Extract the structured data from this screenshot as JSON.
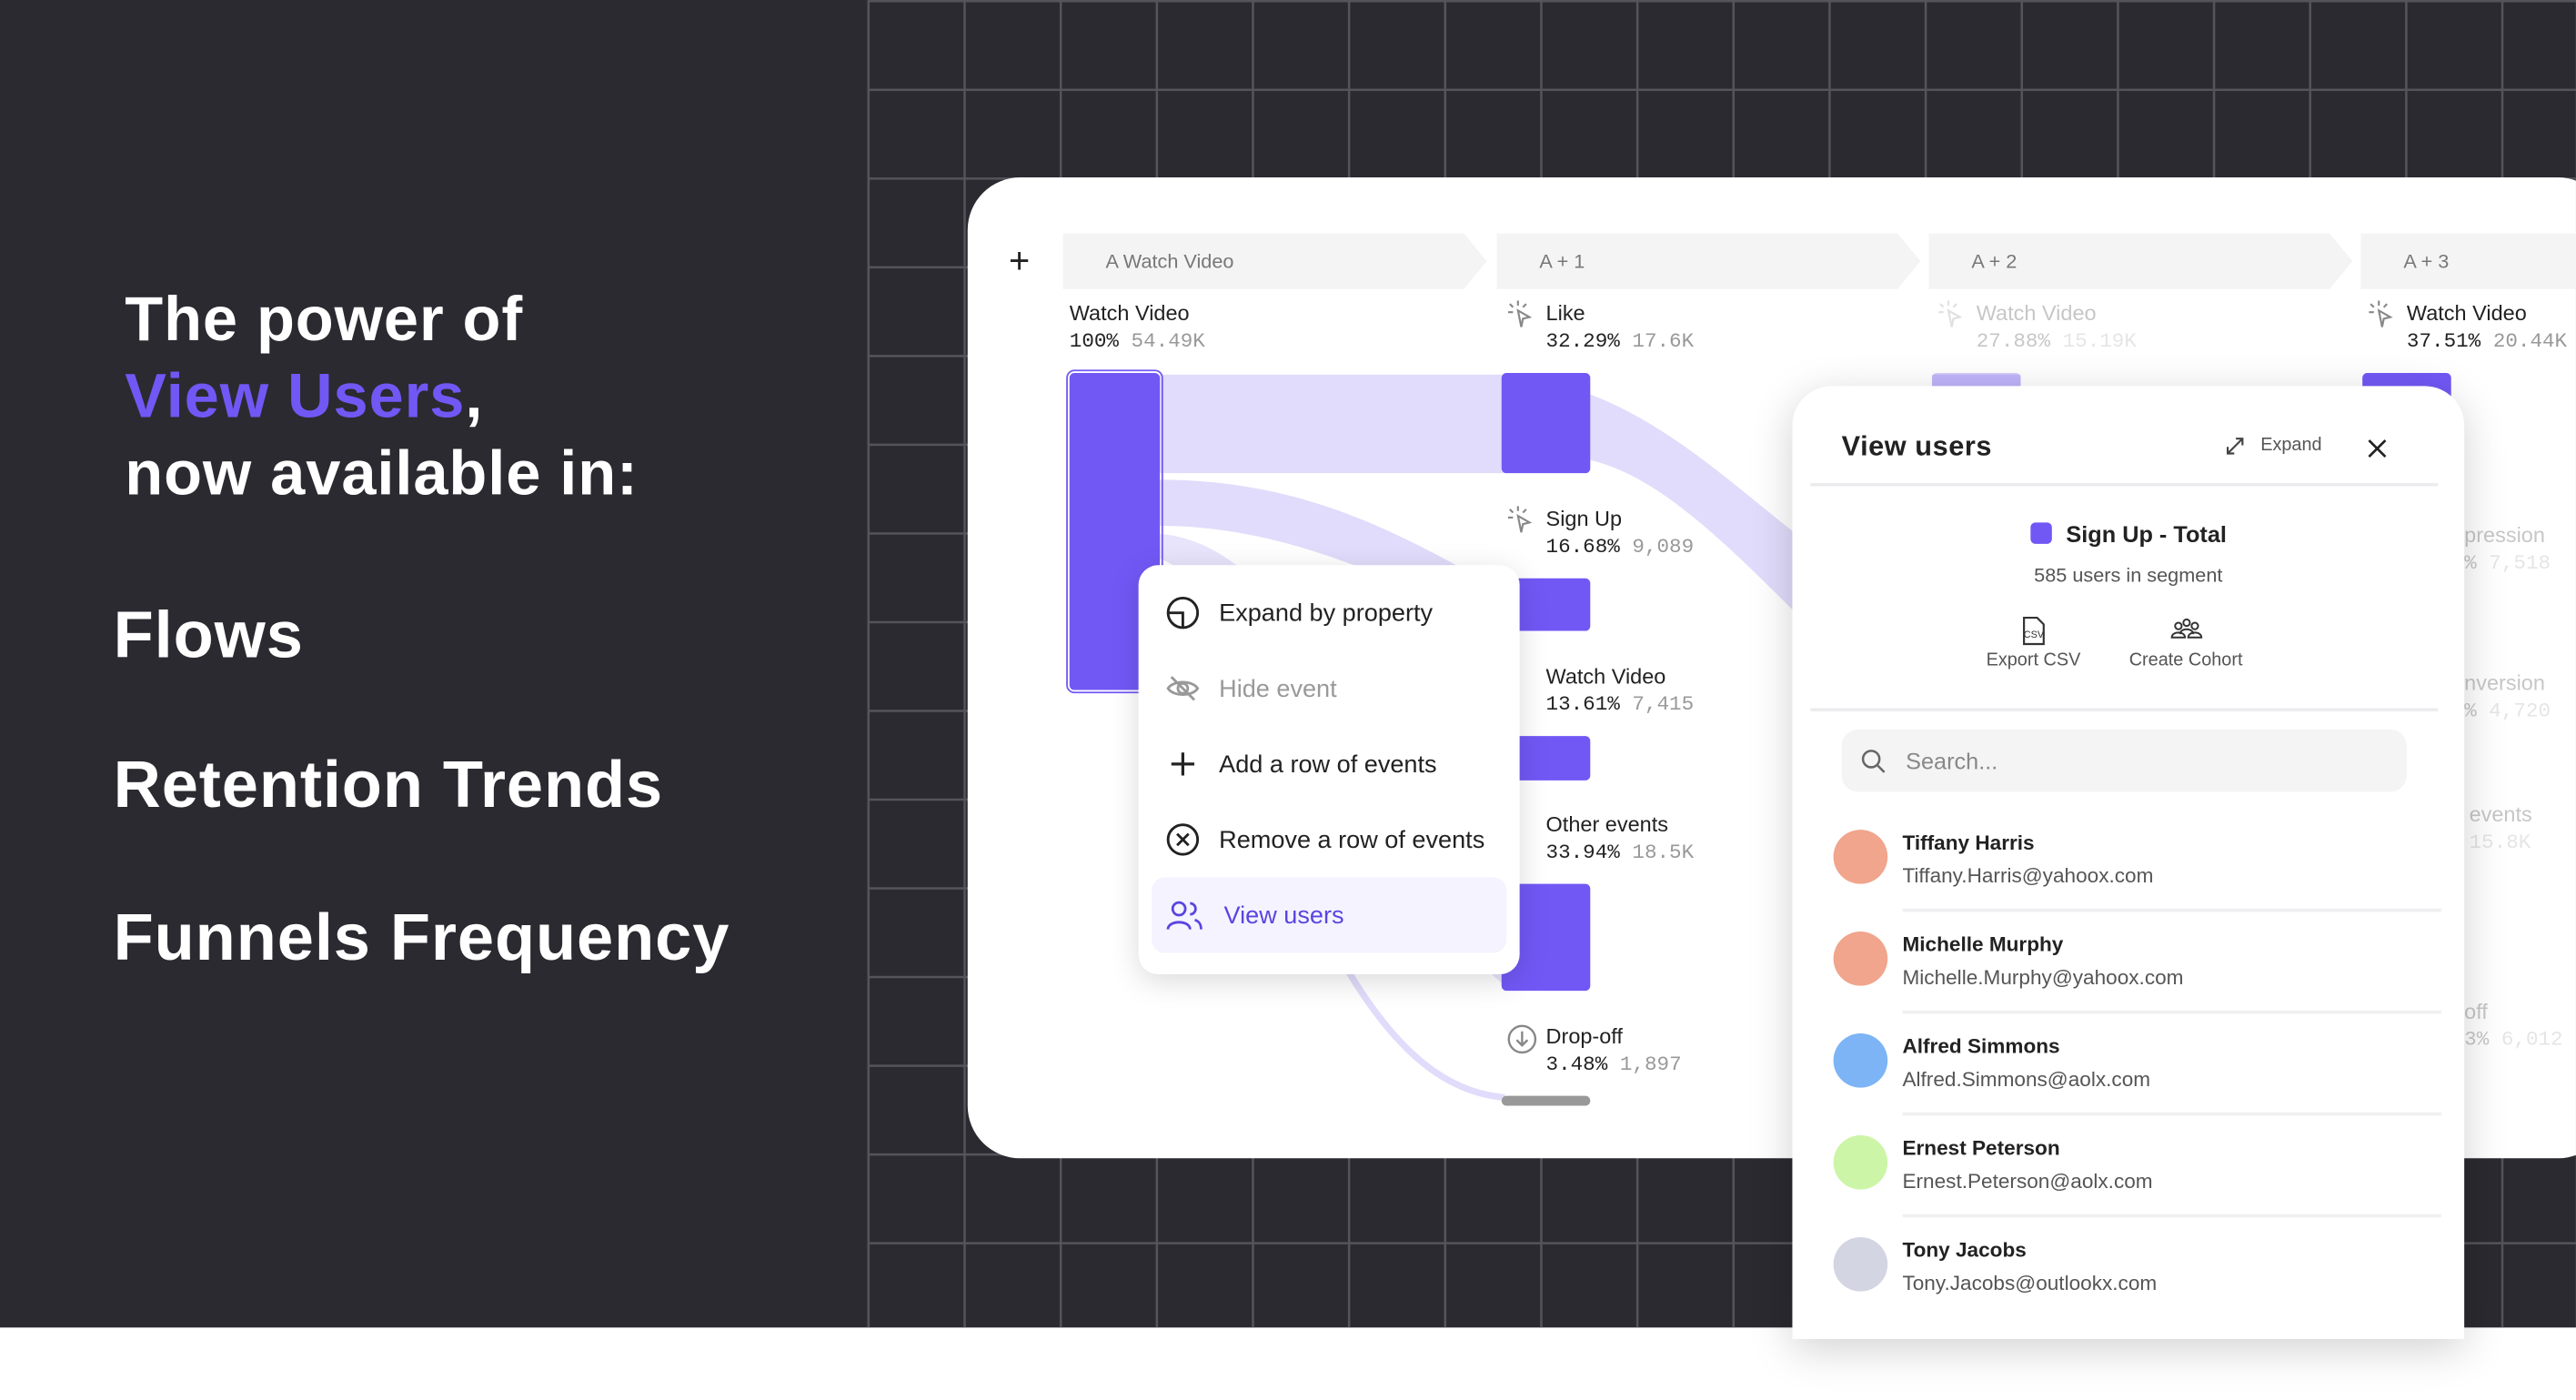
{
  "promo": {
    "line1": "The power of",
    "accent": "View Users",
    "comma": ",",
    "line3": "now available in:",
    "features": [
      "Flows",
      "Retention Trends",
      "Funnels Frequency"
    ],
    "accent_color": "#7158f5"
  },
  "flows": {
    "add_icon": "plus-icon",
    "steps": [
      {
        "label": "A  Watch Video"
      },
      {
        "label": "A + 1"
      },
      {
        "label": "A + 2"
      },
      {
        "label": "A + 3"
      }
    ],
    "nodes": [
      {
        "name": "Watch Video",
        "pct": "100%",
        "count": "54.49K"
      },
      {
        "name": "Like",
        "pct": "32.29%",
        "count": "17.6K"
      },
      {
        "name": "Sign Up",
        "pct": "16.68%",
        "count": "9,089"
      },
      {
        "name": "Watch Video",
        "pct": "13.61%",
        "count": "7,415"
      },
      {
        "name": "Other events",
        "pct": "33.94%",
        "count": "18.5K"
      },
      {
        "name": "Drop-off",
        "pct": "3.48%",
        "count": "1,897"
      },
      {
        "name": "Watch Video",
        "pct": "27.88%",
        "count": "15.19K"
      },
      {
        "name": "Watch Video",
        "pct": "37.51%",
        "count": "20.44K"
      },
      {
        "name": "pression",
        "pct": "%",
        "count": "7,518"
      },
      {
        "name": "nversion",
        "pct": "%",
        "count": "4,720"
      },
      {
        "name": "events",
        "pct": "",
        "count": "15.8K"
      },
      {
        "name": "off",
        "pct": "3%",
        "count": "6,012"
      }
    ],
    "bar_color": "#7158f5",
    "link_color": "#e1dcfb"
  },
  "context_menu": {
    "items": [
      {
        "label": "Expand by property",
        "icon": "expand-property-icon"
      },
      {
        "label": "Hide event",
        "icon": "eye-off-icon",
        "disabled": true
      },
      {
        "label": "Add a row of events",
        "icon": "plus-icon"
      },
      {
        "label": "Remove a row of events",
        "icon": "circle-x-icon"
      },
      {
        "label": "View users",
        "icon": "users-icon",
        "selected": true
      }
    ]
  },
  "panel": {
    "title": "View users",
    "expand_label": "Expand",
    "segment_name": "Sign Up - Total",
    "segment_count": "585 users in segment",
    "export_label": "Export CSV",
    "cohort_label": "Create Cohort",
    "search_placeholder": "Search...",
    "users": [
      {
        "name": "Tiffany Harris",
        "email": "Tiffany.Harris@yahoox.com",
        "color": "#f0a58c"
      },
      {
        "name": "Michelle Murphy",
        "email": "Michelle.Murphy@yahoox.com",
        "color": "#f0a58c"
      },
      {
        "name": "Alfred Simmons",
        "email": "Alfred.Simmons@aolx.com",
        "color": "#7db4f5"
      },
      {
        "name": "Ernest Peterson",
        "email": "Ernest.Peterson@aolx.com",
        "color": "#cdf5a8"
      },
      {
        "name": "Tony Jacobs",
        "email": "Tony.Jacobs@outlookx.com",
        "color": "#d3d5e2"
      }
    ]
  }
}
